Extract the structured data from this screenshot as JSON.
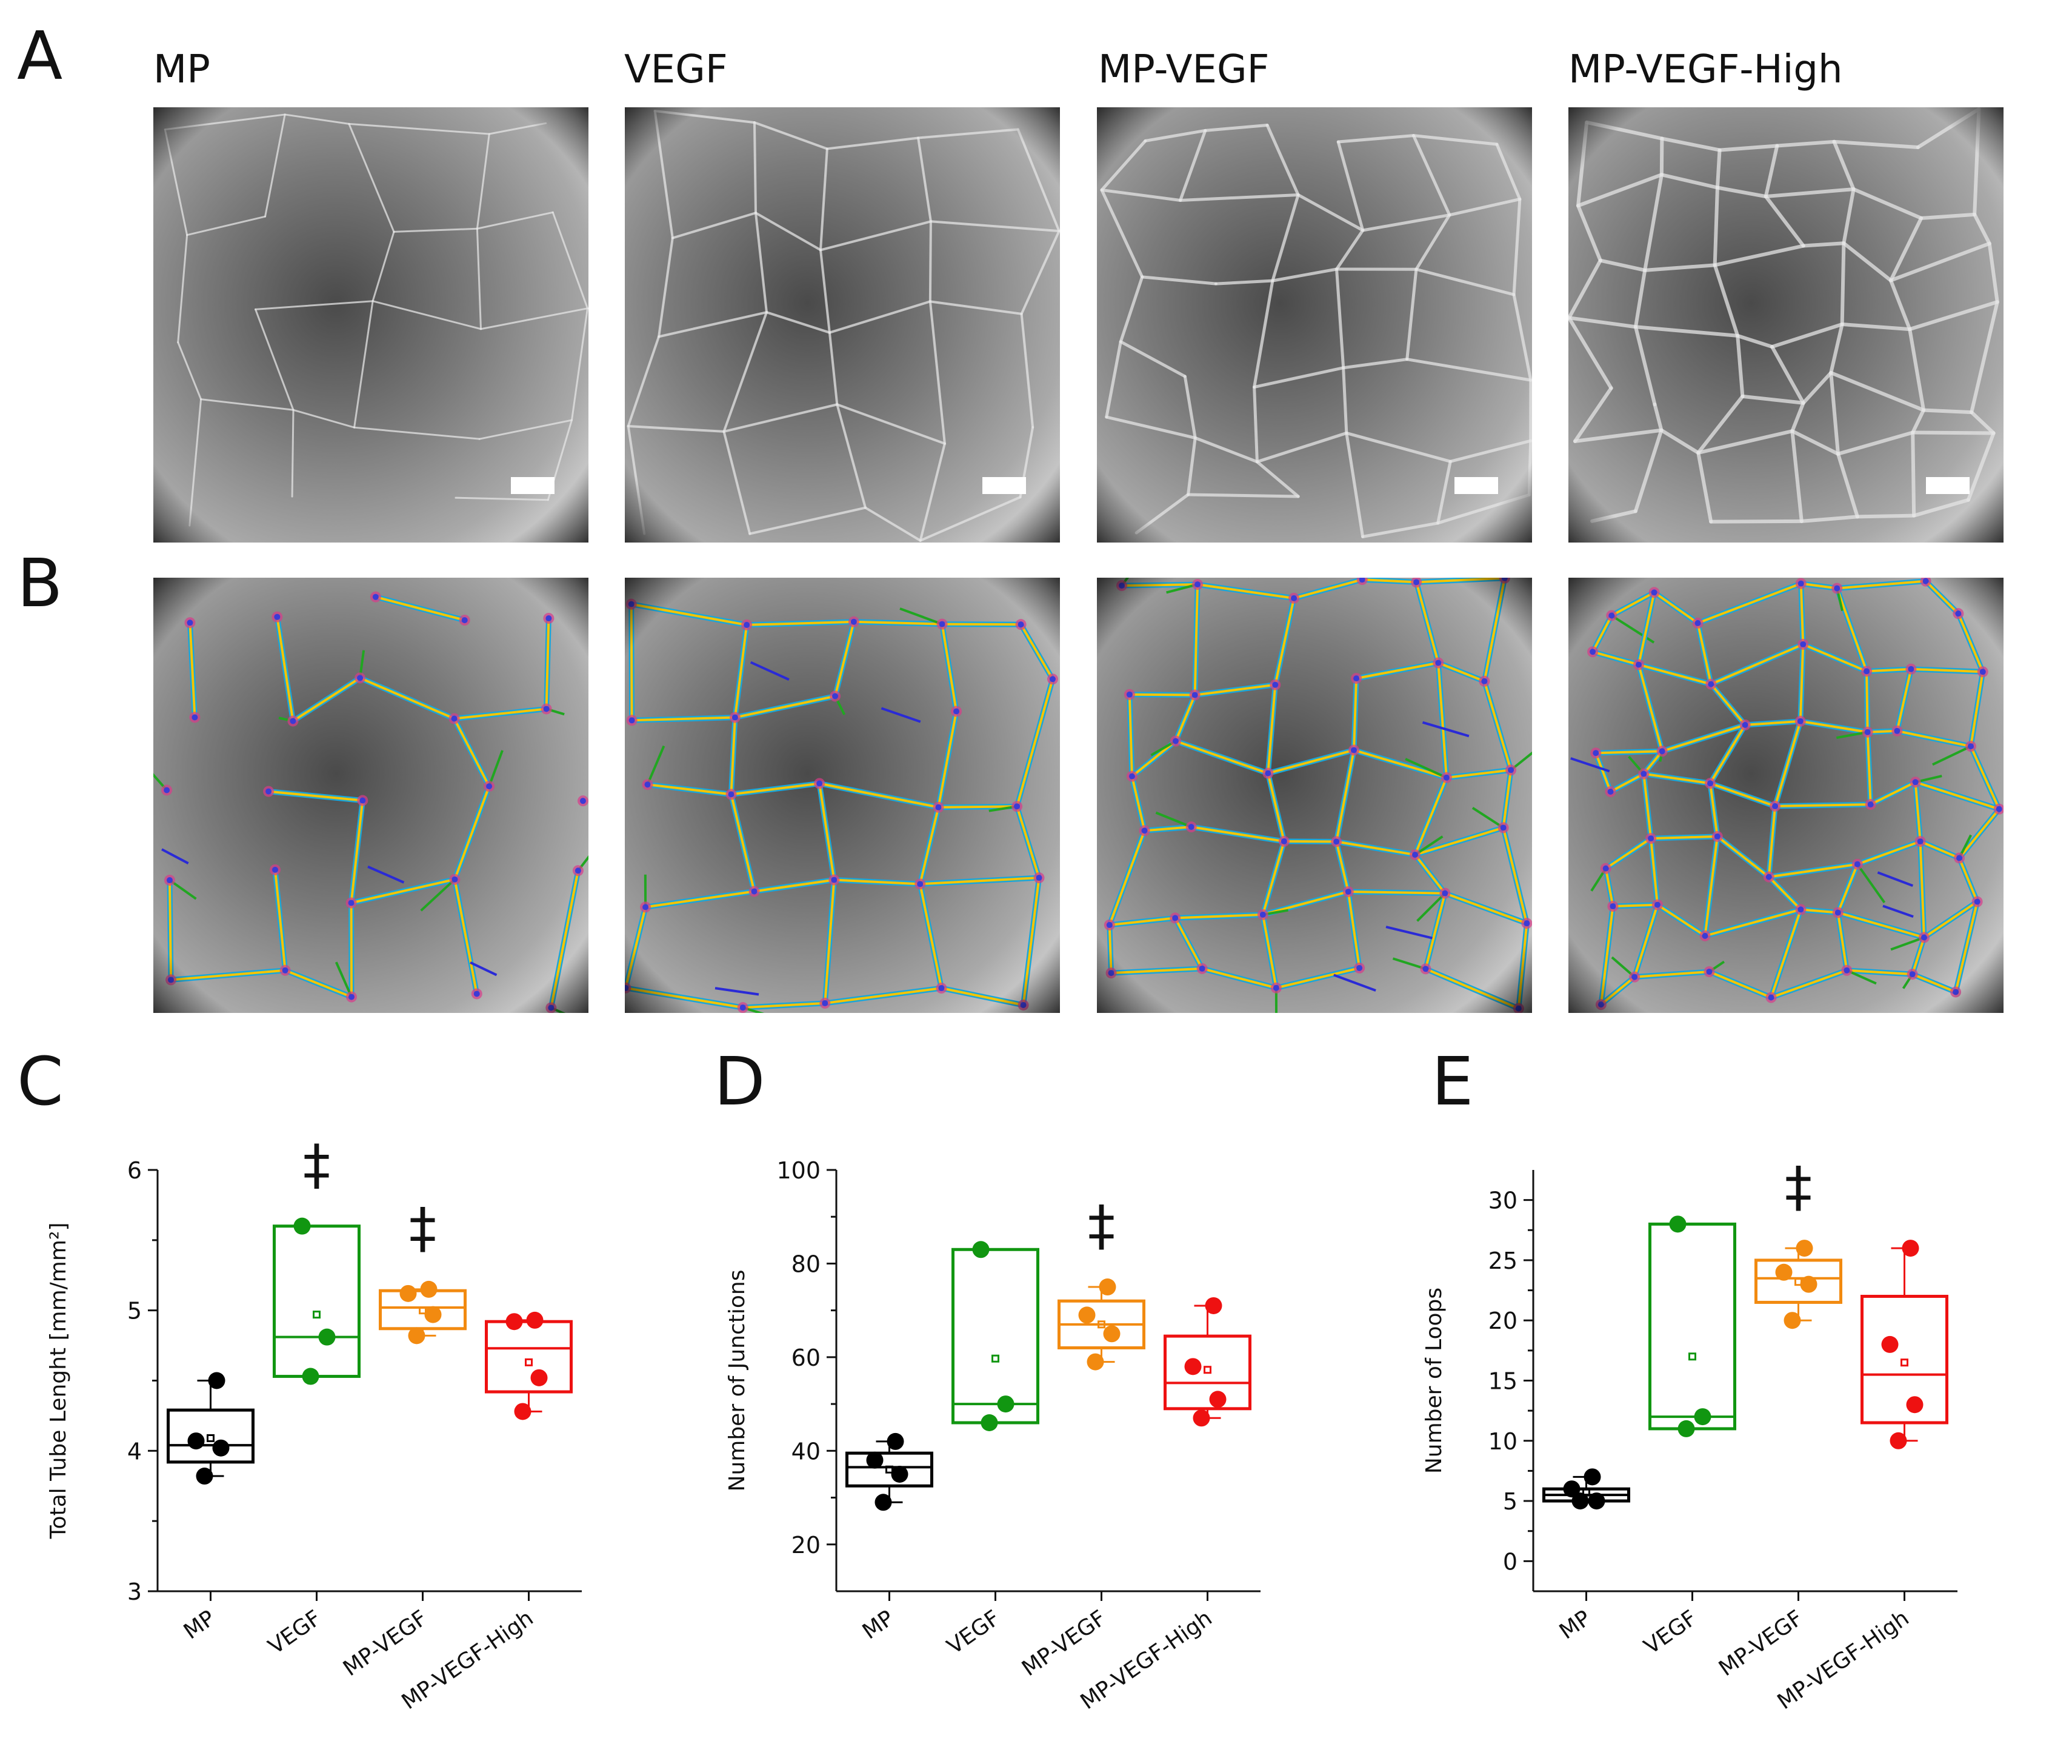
{
  "panels": {
    "a": {
      "letter": "A",
      "titles": [
        "MP",
        "VEGF",
        "MP-VEGF",
        "MP-VEGF-High"
      ]
    },
    "b": {
      "letter": "B"
    },
    "c": {
      "letter": "C"
    },
    "d": {
      "letter": "D"
    },
    "e": {
      "letter": "E"
    }
  },
  "micrographs": [
    {
      "group": "MP",
      "condition": "raw",
      "scale_bar": true
    },
    {
      "group": "VEGF",
      "condition": "raw",
      "scale_bar": true
    },
    {
      "group": "MP-VEGF",
      "condition": "raw",
      "scale_bar": true
    },
    {
      "group": "MP-VEGF-High",
      "condition": "raw",
      "scale_bar": true
    },
    {
      "group": "MP",
      "condition": "analyzed",
      "scale_bar": false
    },
    {
      "group": "VEGF",
      "condition": "analyzed",
      "scale_bar": false
    },
    {
      "group": "MP-VEGF",
      "condition": "analyzed",
      "scale_bar": false
    },
    {
      "group": "MP-VEGF-High",
      "condition": "analyzed",
      "scale_bar": false
    }
  ],
  "overlay_colors": {
    "tubes": "#f5c400",
    "loops": "#1aa6d9",
    "branches": "#21a621",
    "isolated": "#2a2ad6",
    "nodes": "#3b3bd6",
    "junctions": "#d83a8a"
  },
  "group_colors": {
    "MP": "#000000",
    "VEGF": "#119611",
    "MP-VEGF": "#f28a10",
    "MP-VEGF-High": "#ee1111"
  },
  "significance_marker": "‡",
  "chart_data": [
    {
      "type": "box",
      "panel": "C",
      "ylabel": "Total Tube Lenght [mm/mm²]",
      "ylim": [
        3,
        6
      ],
      "yticks": [
        "3",
        "4",
        "5",
        "6"
      ],
      "categories": [
        "MP",
        "VEGF",
        "MP-VEGF",
        "MP-VEGF-High"
      ],
      "boxes": [
        {
          "q1": 3.92,
          "median": 4.04,
          "q3": 4.29,
          "mean": 4.09,
          "whisker": [
            3.82,
            4.5
          ],
          "points": [
            3.82,
            4.02,
            4.07,
            4.5
          ],
          "sig": false
        },
        {
          "q1": 4.53,
          "median": 4.81,
          "q3": 5.6,
          "mean": 4.97,
          "whisker": null,
          "points": [
            4.53,
            4.81,
            5.6
          ],
          "sig": true
        },
        {
          "q1": 4.87,
          "median": 5.02,
          "q3": 5.14,
          "mean": 5.0,
          "whisker": [
            4.82,
            5.15
          ],
          "points": [
            4.82,
            4.97,
            5.12,
            5.15
          ],
          "sig": true
        },
        {
          "q1": 4.42,
          "median": 4.73,
          "q3": 4.92,
          "mean": 4.63,
          "whisker": [
            4.28,
            4.93
          ],
          "points": [
            4.28,
            4.52,
            4.92,
            4.93
          ],
          "sig": false
        }
      ]
    },
    {
      "type": "box",
      "panel": "D",
      "ylabel": "Number of Junctions",
      "ylim": [
        10,
        100
      ],
      "yticks": [
        "20",
        "40",
        "60",
        "80",
        "100"
      ],
      "categories": [
        "MP",
        "VEGF",
        "MP-VEGF",
        "MP-VEGF-High"
      ],
      "boxes": [
        {
          "q1": 32.5,
          "median": 36.5,
          "q3": 39.5,
          "mean": 36.0,
          "whisker": [
            29,
            42
          ],
          "points": [
            29,
            35,
            38,
            42
          ],
          "sig": false
        },
        {
          "q1": 46,
          "median": 50,
          "q3": 83,
          "mean": 59.7,
          "whisker": null,
          "points": [
            46,
            50,
            83
          ],
          "sig": false
        },
        {
          "q1": 62,
          "median": 67,
          "q3": 72,
          "mean": 67.0,
          "whisker": [
            59,
            75
          ],
          "points": [
            59,
            65,
            69,
            75
          ],
          "sig": true
        },
        {
          "q1": 49,
          "median": 54.5,
          "q3": 64.5,
          "mean": 57.3,
          "whisker": [
            47,
            71
          ],
          "points": [
            47,
            51,
            58,
            71
          ],
          "sig": false
        }
      ]
    },
    {
      "type": "box",
      "panel": "E",
      "ylabel": "Number of Loops",
      "ylim": [
        -2.5,
        32.5
      ],
      "yticks": [
        "0",
        "5",
        "10",
        "15",
        "20",
        "25",
        "30"
      ],
      "categories": [
        "MP",
        "VEGF",
        "MP-VEGF",
        "MP-VEGF-High"
      ],
      "boxes": [
        {
          "q1": 5,
          "median": 5.5,
          "q3": 6,
          "mean": 5.7,
          "whisker": [
            5,
            7
          ],
          "points": [
            5,
            5,
            6,
            7
          ],
          "sig": false
        },
        {
          "q1": 11,
          "median": 12,
          "q3": 28,
          "mean": 17.0,
          "whisker": null,
          "points": [
            11,
            12,
            28
          ],
          "sig": false
        },
        {
          "q1": 21.5,
          "median": 23.5,
          "q3": 25,
          "mean": 23.2,
          "whisker": [
            20,
            26
          ],
          "points": [
            20,
            23,
            24,
            26
          ],
          "sig": true
        },
        {
          "q1": 11.5,
          "median": 15.5,
          "q3": 22,
          "mean": 16.5,
          "whisker": [
            10,
            26
          ],
          "points": [
            10,
            13,
            18,
            26
          ],
          "sig": false
        }
      ]
    }
  ]
}
